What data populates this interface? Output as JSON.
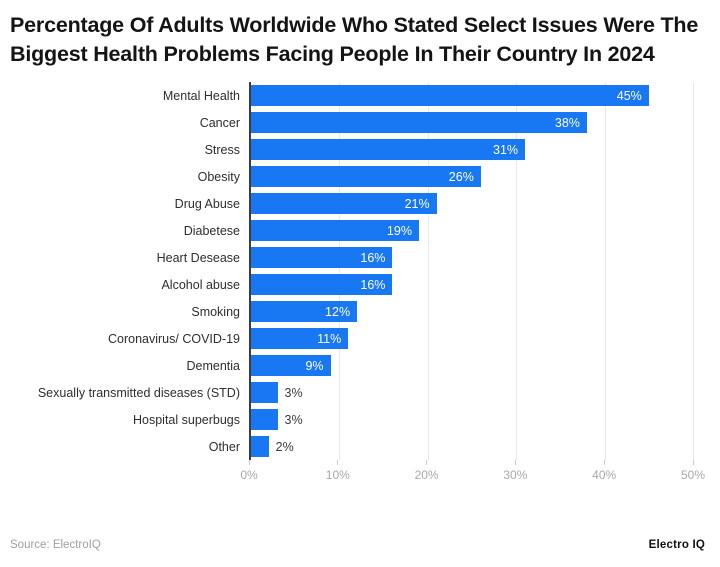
{
  "chart_data": {
    "type": "bar",
    "orientation": "horizontal",
    "title": "Percentage Of Adults Worldwide Who Stated Select Issues Were The Biggest Health Problems Facing People In Their Country In 2024",
    "categories": [
      "Mental Health",
      "Cancer",
      "Stress",
      "Obesity",
      "Drug Abuse",
      "Diabetese",
      "Heart Desease",
      "Alcohol abuse",
      "Smoking",
      "Coronavirus/ COVID-19",
      "Dementia",
      "Sexually transmitted diseases (STD)",
      "Hospital superbugs",
      "Other"
    ],
    "values": [
      45,
      38,
      31,
      26,
      21,
      19,
      16,
      16,
      12,
      11,
      9,
      3,
      3,
      2
    ],
    "value_labels": [
      "45%",
      "38%",
      "31%",
      "26%",
      "21%",
      "19%",
      "16%",
      "16%",
      "12%",
      "11%",
      "9%",
      "3%",
      "3%",
      "2%"
    ],
    "xlabel": "",
    "ylabel": "",
    "xlim": [
      0,
      50
    ],
    "x_ticks": [
      "0%",
      "10%",
      "20%",
      "30%",
      "40%",
      "50%"
    ],
    "grid": "vertical-light",
    "legend": "none",
    "bar_color": "#1877F2",
    "source": "Source: ElectroIQ",
    "brand": "Electro IQ"
  }
}
